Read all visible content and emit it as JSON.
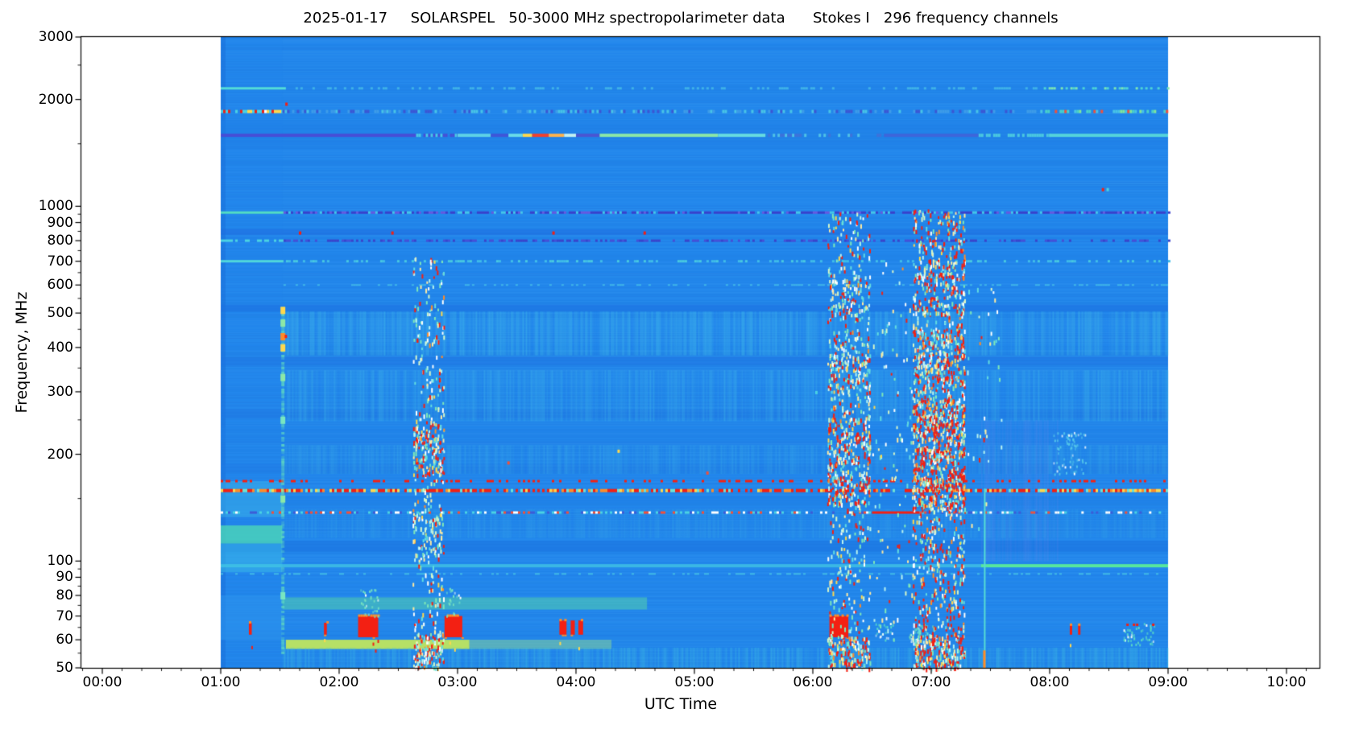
{
  "chart_data": {
    "type": "heatmap",
    "title": "2025-01-17     SOLARSPEL   50-3000 MHz spectropolarimeter data      Stokes I   296 frequency channels",
    "title_parts": {
      "date": "2025-01-17",
      "instrument": "SOLARSPEL",
      "range": "50-3000 MHz",
      "kind": "spectropolarimeter data",
      "stokes": "Stokes I",
      "channels": "296 frequency channels"
    },
    "xlabel": "UTC Time",
    "ylabel": "Frequency, MHz",
    "x_axis": {
      "unit": "hours UTC",
      "xlim": [
        -0.19,
        10.28
      ],
      "minor_step_min": 10,
      "ticks": [
        {
          "t": 0,
          "label": "00:00"
        },
        {
          "t": 1,
          "label": "01:00"
        },
        {
          "t": 2,
          "label": "02:00"
        },
        {
          "t": 3,
          "label": "03:00"
        },
        {
          "t": 4,
          "label": "04:00"
        },
        {
          "t": 5,
          "label": "05:00"
        },
        {
          "t": 6,
          "label": "06:00"
        },
        {
          "t": 7,
          "label": "07:00"
        },
        {
          "t": 8,
          "label": "08:00"
        },
        {
          "t": 9,
          "label": "09:00"
        },
        {
          "t": 10,
          "label": "10:00"
        }
      ]
    },
    "y_axis": {
      "scale": "log",
      "unit": "MHz",
      "ylim": [
        50,
        3000
      ],
      "major_ticks": [
        3000,
        2000,
        1000,
        900,
        800,
        700,
        600,
        500,
        400,
        300,
        200,
        100,
        90,
        80,
        70,
        60,
        50
      ],
      "minor_ticks": [
        2500,
        1500,
        950,
        850,
        750,
        650,
        550,
        450,
        350,
        250,
        150,
        95,
        85,
        75,
        65,
        55
      ]
    },
    "data_extent": {
      "t_start": 1.0,
      "t_end": 9.0,
      "f_min": 50,
      "f_max": 3000
    },
    "colormap": "jet-like: blue background, cyan/green/yellow/red with increasing intensity",
    "palette": {
      "base": "#2287ec",
      "red": "#f32013",
      "orange": "#ff8c28",
      "yellow": "#ffd84d",
      "cyan": "#4ad2e2",
      "green": "#6fe2a2",
      "purple": "#4348d2",
      "speck_colors": [
        "#ffffff",
        "#b8f4f0",
        "#62dce0",
        "#d6f7c8",
        "#ffeaa0",
        "#7ee8b8"
      ]
    },
    "bands": [
      {
        "f1": 50,
        "f2": 3000,
        "t1": 1.0,
        "t2": 1.52,
        "color": "#2183ea",
        "alpha": 0.3
      },
      {
        "f1": 50,
        "f2": 3000,
        "t1": 1.0,
        "t2": 1.04,
        "color": "#1a6ed8",
        "alpha": 0.5
      },
      {
        "f1": 1450,
        "f2": 1750,
        "color": "#1e7fe6",
        "alpha": 0.45
      },
      {
        "f1": 830,
        "f2": 862,
        "color": "#1e6ade",
        "alpha": 0.5
      },
      {
        "f1": 505,
        "f2": 528,
        "color": "#1b6fe0",
        "alpha": 0.55
      },
      {
        "f1": 356,
        "f2": 376,
        "color": "#1d74e2",
        "alpha": 0.5
      },
      {
        "f1": 252,
        "f2": 268,
        "color": "#1d76e2",
        "alpha": 0.5
      },
      {
        "f1": 215,
        "f2": 238,
        "color": "#1f80e8",
        "alpha": 0.35
      },
      {
        "f1": 177,
        "f2": 188,
        "color": "#1e7ae4",
        "alpha": 0.45
      },
      {
        "f1": 143,
        "f2": 152,
        "color": "#1f7ce4",
        "alpha": 0.4
      },
      {
        "f1": 106,
        "f2": 114,
        "color": "#1c72e0",
        "alpha": 0.55
      },
      {
        "f1": 60,
        "f2": 64,
        "color": "#1f80e6",
        "alpha": 0.4
      },
      {
        "f1": 112,
        "f2": 126,
        "t1": 1.0,
        "t2": 1.52,
        "color": "#4fdcb4",
        "alpha": 0.75
      },
      {
        "f1": 93,
        "f2": 112,
        "t1": 1.0,
        "t2": 1.52,
        "color": "#40c6e8",
        "alpha": 0.45
      },
      {
        "f1": 133,
        "f2": 168,
        "t1": 1.0,
        "t2": 1.52,
        "color": "#43c0e8",
        "alpha": 0.4
      },
      {
        "f1": 60,
        "f2": 80,
        "t1": 1.0,
        "t2": 1.52,
        "color": "#2e96ee",
        "alpha": 0.5
      },
      {
        "f1": 73,
        "f2": 79,
        "t1": 1.52,
        "t2": 4.6,
        "color": "#58d8a8",
        "alpha": 0.5
      },
      {
        "f1": 56.5,
        "f2": 60,
        "t1": 1.55,
        "t2": 3.1,
        "color": "#c6ea58",
        "alpha": 0.9
      },
      {
        "f1": 56.5,
        "f2": 60,
        "t1": 3.1,
        "t2": 4.3,
        "color": "#9ae08c",
        "alpha": 0.45
      },
      {
        "f1": 380,
        "f2": 505,
        "t1": 1.52,
        "t2": 9,
        "color": "#46c2e8",
        "alpha": 0.42,
        "stripe": true
      },
      {
        "f1": 248,
        "f2": 345,
        "t1": 1.52,
        "t2": 9,
        "color": "#42bce8",
        "alpha": 0.38,
        "stripe": true
      },
      {
        "f1": 176,
        "f2": 212,
        "t1": 1.52,
        "t2": 9,
        "color": "#40b8e6",
        "alpha": 0.3,
        "stripe": true
      },
      {
        "f1": 116,
        "f2": 140,
        "t1": 1.52,
        "t2": 9,
        "color": "#3cb2e6",
        "alpha": 0.26,
        "stripe": true
      },
      {
        "f1": 50,
        "f2": 57,
        "t1": 1.52,
        "t2": 9,
        "color": "#44c6e0",
        "alpha": 0.4,
        "stripe": true
      },
      {
        "f1": 100,
        "f2": 250,
        "t1": 7.42,
        "t2": 8.06,
        "color": "#7a86ec",
        "alpha": 0.22,
        "stripe": true
      }
    ],
    "lines": [
      {
        "f": 2150,
        "h": 3,
        "segments": [
          {
            "t1": 1.0,
            "t2": 1.55,
            "style": "solid",
            "color": "#53dcd8"
          },
          {
            "t1": 1.55,
            "t2": 7.95,
            "style": "dash",
            "colors": [
              "#3fb2e8"
            ],
            "density": 0.3
          },
          {
            "t1": 7.95,
            "t2": 9.0,
            "style": "dash",
            "colors": [
              "#4ed4d6",
              "#7ce6b4"
            ],
            "density": 0.45
          }
        ]
      },
      {
        "f": 1850,
        "h": 4,
        "segments": [
          {
            "t1": 1.0,
            "t2": 1.52,
            "style": "dash",
            "colors": [
              "#f32013",
              "#ffffff",
              "#ffd84d",
              "#4ad2e2",
              "#4ad2e2"
            ],
            "density": 0.9
          },
          {
            "t1": 1.52,
            "t2": 7.9,
            "style": "dash",
            "colors": [
              "#3e9ce8",
              "#48c4e6",
              "#3c55d4"
            ],
            "density": 0.55
          },
          {
            "t1": 7.9,
            "t2": 9.0,
            "style": "dash",
            "colors": [
              "#4ad2c8",
              "#82e89a",
              "#f3503a",
              "#48c4e6"
            ],
            "density": 0.6
          }
        ]
      },
      {
        "f": 1585,
        "h": 4,
        "segments": [
          {
            "t1": 1.0,
            "t2": 2.65,
            "style": "solid",
            "color": "#474ed6"
          },
          {
            "t1": 2.65,
            "t2": 3.0,
            "style": "dash",
            "colors": [
              "#474ed6",
              "#4bc9e4"
            ],
            "density": 0.85
          },
          {
            "t1": 3.0,
            "t2": 3.28,
            "style": "solid",
            "color": "#5ed2e6"
          },
          {
            "t1": 3.28,
            "t2": 3.43,
            "style": "solid",
            "color": "#3f56d8"
          },
          {
            "t1": 3.43,
            "t2": 3.55,
            "style": "solid",
            "color": "#6adce8"
          },
          {
            "t1": 3.55,
            "t2": 3.63,
            "style": "solid",
            "color": "#ffd84d"
          },
          {
            "t1": 3.63,
            "t2": 3.77,
            "style": "solid",
            "color": "#f3402c"
          },
          {
            "t1": 3.77,
            "t2": 3.9,
            "style": "solid",
            "color": "#ffb24d"
          },
          {
            "t1": 3.9,
            "t2": 4.0,
            "style": "solid",
            "color": "#c2f0f2"
          },
          {
            "t1": 4.0,
            "t2": 4.2,
            "style": "solid",
            "color": "#4a55d2"
          },
          {
            "t1": 4.2,
            "t2": 5.2,
            "style": "solid",
            "color": "#8ce8a6"
          },
          {
            "t1": 5.2,
            "t2": 5.6,
            "style": "solid",
            "color": "#67dce0"
          },
          {
            "t1": 5.6,
            "t2": 6.6,
            "style": "dash",
            "colors": [
              "#4fc2e6",
              "#3e72da"
            ],
            "density": 0.5
          },
          {
            "t1": 6.6,
            "t2": 7.4,
            "style": "solid",
            "color": "#3e66da"
          },
          {
            "t1": 7.4,
            "t2": 8.0,
            "style": "dash",
            "colors": [
              "#4ac8e0"
            ],
            "density": 0.6
          },
          {
            "t1": 8.0,
            "t2": 9.0,
            "style": "solid",
            "color": "#55d4da"
          }
        ]
      },
      {
        "f": 960,
        "h": 3,
        "segments": [
          {
            "t1": 1.0,
            "t2": 1.53,
            "style": "solid",
            "color": "#52dcc2"
          },
          {
            "t1": 1.53,
            "t2": 9.0,
            "style": "dash",
            "colors": [
              "#3a40cc",
              "#3a40cc",
              "#45c8e8",
              "#6858e0"
            ],
            "density": 0.85
          }
        ]
      },
      {
        "f": 800,
        "h": 3,
        "segments": [
          {
            "t1": 1.0,
            "t2": 1.53,
            "style": "dash",
            "colors": [
              "#4bd2e2"
            ],
            "density": 0.6
          },
          {
            "t1": 1.53,
            "t2": 9.0,
            "style": "dash",
            "colors": [
              "#3a44cc",
              "#4550d8"
            ],
            "density": 0.55
          }
        ]
      },
      {
        "f": 700,
        "h": 3,
        "segments": [
          {
            "t1": 1.0,
            "t2": 1.53,
            "style": "solid",
            "color": "#50d6da"
          },
          {
            "t1": 1.53,
            "t2": 9.0,
            "style": "dash",
            "colors": [
              "#40bce8",
              "#48c8e0"
            ],
            "density": 0.4
          }
        ]
      },
      {
        "f": 600,
        "h": 2,
        "segments": [
          {
            "t1": 1.53,
            "t2": 9.0,
            "style": "dash",
            "colors": [
              "#3fb4e8"
            ],
            "density": 0.3
          }
        ]
      },
      {
        "f": 168,
        "h": 3,
        "segments": [
          {
            "t1": 1.0,
            "t2": 9.0,
            "style": "dash",
            "colors": [
              "#f32013"
            ],
            "density": 0.28
          }
        ]
      },
      {
        "f": 158,
        "h": 4,
        "segments": [
          {
            "t1": 1.0,
            "t2": 9.0,
            "style": "dash",
            "colors": [
              "#f32013",
              "#f32013",
              "#f32013",
              "#ff8c28",
              "#ffd84d",
              "#6fe2d2"
            ],
            "density": 0.8
          }
        ]
      },
      {
        "f": 137,
        "h": 3,
        "segments": [
          {
            "t1": 1.0,
            "t2": 6.5,
            "style": "dash",
            "colors": [
              "#4ad2e2",
              "#ffffff",
              "#f3503a",
              "#3c5cd8",
              "#4ad2e2"
            ],
            "density": 0.5
          },
          {
            "t1": 6.5,
            "t2": 6.9,
            "style": "solid",
            "color": "#f32013"
          },
          {
            "t1": 6.9,
            "t2": 9.0,
            "style": "dash",
            "colors": [
              "#4ad2e2",
              "#ffffff",
              "#f3503a",
              "#3c5cd8"
            ],
            "density": 0.5
          }
        ]
      },
      {
        "f": 97,
        "h": 4,
        "segments": [
          {
            "t1": 1.0,
            "t2": 7.42,
            "style": "solid",
            "color": "#41c4e4",
            "alpha": 0.8
          },
          {
            "t1": 7.42,
            "t2": 9.0,
            "style": "solid",
            "color": "#57e69e"
          }
        ]
      },
      {
        "f": 92,
        "h": 2,
        "segments": [
          {
            "t1": 1.0,
            "t2": 9.0,
            "style": "dash",
            "colors": [
              "#3fb8e6"
            ],
            "density": 0.3
          }
        ]
      }
    ],
    "blocks": [
      {
        "t1": 1.238,
        "t2": 1.262,
        "f1": 62,
        "f2": 67
      },
      {
        "t1": 1.872,
        "t2": 1.896,
        "f1": 62,
        "f2": 67
      },
      {
        "t1": 2.16,
        "t2": 2.33,
        "f1": 61,
        "f2": 70
      },
      {
        "t1": 2.89,
        "t2": 3.04,
        "f1": 61,
        "f2": 70
      },
      {
        "t1": 3.86,
        "t2": 3.92,
        "f1": 62,
        "f2": 68
      },
      {
        "t1": 3.955,
        "t2": 3.99,
        "f1": 62,
        "f2": 68
      },
      {
        "t1": 4.02,
        "t2": 4.06,
        "f1": 62,
        "f2": 68
      },
      {
        "t1": 6.14,
        "t2": 6.3,
        "f1": 61,
        "f2": 70
      },
      {
        "t1": 8.17,
        "t2": 8.19,
        "f1": 62,
        "f2": 66
      },
      {
        "t1": 8.24,
        "t2": 8.26,
        "f1": 62,
        "f2": 66
      }
    ],
    "bursts": [
      {
        "t1": 2.62,
        "t2": 2.88,
        "f1": 50,
        "f2": 730,
        "density": 0.45,
        "red_frac": 0.22,
        "cores": [
          {
            "f1": 175,
            "f2": 245,
            "density": 1.3,
            "red_frac": 0.45
          },
          {
            "f1": 50,
            "f2": 63,
            "density": 1.5,
            "red_frac": 0.4
          },
          {
            "f1": 100,
            "f2": 140,
            "density": 0.7,
            "red_frac": 0.2
          }
        ]
      },
      {
        "t1": 6.12,
        "t2": 6.48,
        "f1": 50,
        "f2": 960,
        "density": 0.5,
        "red_frac": 0.28,
        "cores": [
          {
            "f1": 145,
            "f2": 255,
            "density": 1.2,
            "red_frac": 0.5
          },
          {
            "f1": 50,
            "f2": 62,
            "density": 1.2,
            "red_frac": 0.5
          },
          {
            "f1": 300,
            "f2": 430,
            "density": 0.8,
            "red_frac": 0.3
          },
          {
            "f1": 480,
            "f2": 620,
            "density": 0.6,
            "red_frac": 0.25
          }
        ]
      },
      {
        "t1": 6.5,
        "t2": 6.84,
        "f1": 60,
        "f2": 700,
        "density": 0.12,
        "red_frac": 0.12,
        "cores": []
      },
      {
        "t1": 6.84,
        "t2": 7.28,
        "f1": 50,
        "f2": 980,
        "density": 0.8,
        "red_frac": 0.42,
        "cores": [
          {
            "f1": 140,
            "f2": 290,
            "density": 1.5,
            "red_frac": 0.6
          },
          {
            "f1": 50,
            "f2": 62,
            "density": 1.4,
            "red_frac": 0.55
          },
          {
            "f1": 300,
            "f2": 450,
            "density": 1.0,
            "red_frac": 0.4
          },
          {
            "f1": 500,
            "f2": 700,
            "density": 0.7,
            "red_frac": 0.3
          }
        ]
      },
      {
        "t1": 7.3,
        "t2": 7.6,
        "f1": 100,
        "f2": 600,
        "density": 0.07,
        "red_frac": 0.1,
        "cores": []
      }
    ],
    "patches": [
      {
        "t1": 6.52,
        "t2": 6.68,
        "f1": 60,
        "f2": 67,
        "color": "#57dcc8",
        "density": 0.8
      },
      {
        "t1": 6.8,
        "t2": 7.02,
        "f1": 59,
        "f2": 67,
        "color": "#6fe4b6",
        "density": 0.9
      },
      {
        "t1": 8.62,
        "t2": 8.88,
        "f1": 58,
        "f2": 67,
        "color": "#5ce0c4",
        "density": 0.85,
        "red_top": true
      },
      {
        "t1": 8.03,
        "t2": 8.3,
        "f1": 175,
        "f2": 232,
        "color": "#55c8ea",
        "density": 0.6
      },
      {
        "t1": 2.16,
        "t2": 2.33,
        "f1": 70,
        "f2": 86,
        "color": "#79e6c0",
        "density": 0.5
      },
      {
        "t1": 2.89,
        "t2": 3.04,
        "f1": 70,
        "f2": 84,
        "color": "#79e6c0",
        "density": 0.45
      }
    ],
    "edge": {
      "t": 1.525,
      "f1": 55,
      "f2": 530,
      "column_color": "#62dcc0",
      "blobs": [
        {
          "f": 510,
          "color": "#ffd84d"
        },
        {
          "f": 470,
          "color": "#8ce8a6"
        },
        {
          "f": 430,
          "color": "#ff8c28"
        },
        {
          "f": 400,
          "color": "#ffd84d"
        },
        {
          "f": 330,
          "color": "#8ce8a6"
        },
        {
          "f": 250,
          "color": "#79e6c0"
        },
        {
          "f": 150,
          "color": "#8ce8a6"
        },
        {
          "f": 80,
          "color": "#79e6c0"
        }
      ]
    },
    "vline": {
      "t": 7.445,
      "f1": 50,
      "f2": 160,
      "color": "#57dcd4",
      "tip_f1": 50,
      "tip_f2": 56,
      "tip_color": "#ff8c28"
    },
    "specks": [
      {
        "t": 1.545,
        "f": 1950,
        "color": "#f32013"
      },
      {
        "t": 1.54,
        "f": 432,
        "color": "#f32013"
      },
      {
        "t": 8.44,
        "f": 1120,
        "color": "#f32013"
      },
      {
        "t": 8.48,
        "f": 1120,
        "color": "#4ad2e2"
      },
      {
        "t": 1.66,
        "f": 845,
        "color": "#f32013"
      },
      {
        "t": 2.44,
        "f": 845,
        "color": "#f32013"
      },
      {
        "t": 3.8,
        "f": 845,
        "color": "#f32013"
      },
      {
        "t": 4.57,
        "f": 845,
        "color": "#f32013"
      },
      {
        "t": 5.1,
        "f": 178,
        "color": "#f3503a"
      },
      {
        "t": 4.35,
        "f": 205,
        "color": "#ffd84d"
      },
      {
        "t": 3.42,
        "f": 190,
        "color": "#f3503a"
      },
      {
        "t": 6.02,
        "f": 300,
        "color": "#4ad2e2"
      }
    ]
  }
}
